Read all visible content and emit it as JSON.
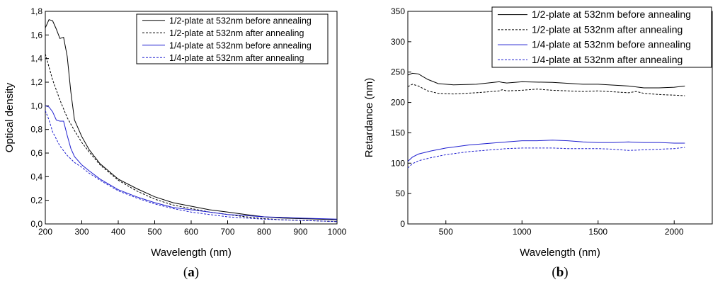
{
  "colors": {
    "black": "#000000",
    "blue": "#1f1fd0"
  },
  "chart_data": [
    {
      "type": "line",
      "panel_label": "a",
      "xlabel": "Wavelength (nm)",
      "ylabel": "Optical density",
      "xlim": [
        200,
        1000
      ],
      "ylim": [
        0,
        1.8
      ],
      "xticks": [
        200,
        300,
        400,
        500,
        600,
        700,
        800,
        900,
        1000
      ],
      "xtick_labels": [
        "200",
        "300",
        "400",
        "500",
        "600",
        "700",
        "800",
        "900",
        "1000"
      ],
      "yticks": [
        0,
        0.2,
        0.4,
        0.6,
        0.8,
        1.0,
        1.2,
        1.4,
        1.6,
        1.8
      ],
      "ytick_labels": [
        "0,0",
        "0,2",
        "0,4",
        "0,6",
        "0,8",
        "1,0",
        "1,2",
        "1,4",
        "1,6",
        "1,8"
      ],
      "legend_position": "top-right",
      "series": [
        {
          "name": "1/2-plate at 532nm before annealing",
          "color": "#000000",
          "dash": "solid",
          "x": [
            200,
            210,
            220,
            230,
            240,
            250,
            260,
            270,
            280,
            300,
            320,
            350,
            400,
            450,
            500,
            550,
            600,
            650,
            700,
            750,
            800,
            850,
            900,
            950,
            1000
          ],
          "y": [
            1.66,
            1.73,
            1.72,
            1.65,
            1.57,
            1.58,
            1.42,
            1.12,
            0.88,
            0.74,
            0.63,
            0.51,
            0.38,
            0.3,
            0.23,
            0.18,
            0.15,
            0.12,
            0.1,
            0.08,
            0.06,
            0.05,
            0.045,
            0.04,
            0.035
          ]
        },
        {
          "name": "1/2-plate at 532nm after annealing",
          "color": "#000000",
          "dash": "dashed",
          "x": [
            200,
            220,
            240,
            260,
            280,
            300,
            320,
            350,
            400,
            450,
            500,
            550,
            600,
            650,
            700,
            750,
            800,
            850,
            900,
            950,
            1000
          ],
          "y": [
            1.44,
            1.22,
            1.05,
            0.9,
            0.79,
            0.69,
            0.61,
            0.5,
            0.37,
            0.28,
            0.21,
            0.16,
            0.13,
            0.1,
            0.08,
            0.06,
            0.045,
            0.035,
            0.03,
            0.025,
            0.02
          ]
        },
        {
          "name": "1/4-plate at 532nm before annealing",
          "color": "#1f1fd0",
          "dash": "solid",
          "x": [
            200,
            210,
            220,
            230,
            240,
            250,
            260,
            270,
            280,
            300,
            320,
            350,
            400,
            450,
            500,
            550,
            600,
            650,
            700,
            750,
            800,
            850,
            900,
            950,
            1000
          ],
          "y": [
            1.0,
            0.99,
            0.95,
            0.88,
            0.87,
            0.87,
            0.75,
            0.64,
            0.57,
            0.5,
            0.45,
            0.38,
            0.29,
            0.23,
            0.18,
            0.14,
            0.12,
            0.1,
            0.08,
            0.07,
            0.06,
            0.055,
            0.05,
            0.045,
            0.04
          ]
        },
        {
          "name": "1/4-plate at 532nm after annealing",
          "color": "#1f1fd0",
          "dash": "dashed",
          "x": [
            200,
            210,
            220,
            240,
            260,
            280,
            300,
            320,
            350,
            400,
            450,
            500,
            550,
            600,
            650,
            700,
            750,
            800,
            850,
            900,
            950,
            1000
          ],
          "y": [
            0.96,
            0.88,
            0.78,
            0.66,
            0.58,
            0.52,
            0.48,
            0.43,
            0.37,
            0.28,
            0.22,
            0.17,
            0.13,
            0.1,
            0.08,
            0.06,
            0.05,
            0.04,
            0.035,
            0.03,
            0.025,
            0.02
          ]
        }
      ]
    },
    {
      "type": "line",
      "panel_label": "b",
      "xlabel": "Wavelength (nm)",
      "ylabel": "Retardance (nm)",
      "xlim": [
        250,
        2250
      ],
      "ylim": [
        0,
        350
      ],
      "xticks": [
        500,
        1000,
        1500,
        2000
      ],
      "xtick_labels": [
        "500",
        "1000",
        "1500",
        "2000"
      ],
      "yticks": [
        0,
        50,
        100,
        150,
        200,
        250,
        300,
        350
      ],
      "ytick_labels": [
        "0",
        "50",
        "100",
        "150",
        "200",
        "250",
        "300",
        "350"
      ],
      "legend_position": "top-right",
      "series": [
        {
          "name": "1/2-plate at 532nm before annealing",
          "color": "#000000",
          "dash": "solid",
          "x": [
            250,
            280,
            320,
            380,
            450,
            550,
            700,
            850,
            870,
            900,
            1000,
            1200,
            1400,
            1500,
            1700,
            1800,
            1900,
            2000,
            2070
          ],
          "y": [
            245,
            248,
            247,
            238,
            231,
            229,
            230,
            234,
            233,
            232,
            234,
            233,
            230,
            230,
            227,
            224,
            224,
            225,
            227
          ]
        },
        {
          "name": "1/2-plate at 532nm after annealing",
          "color": "#000000",
          "dash": "dashed",
          "x": [
            250,
            280,
            320,
            380,
            450,
            550,
            700,
            850,
            870,
            900,
            1000,
            1100,
            1200,
            1400,
            1500,
            1700,
            1750,
            1800,
            1900,
            2000,
            2070
          ],
          "y": [
            226,
            230,
            227,
            219,
            215,
            214,
            216,
            219,
            221,
            219,
            220,
            222,
            220,
            218,
            219,
            216,
            218,
            215,
            213,
            212,
            211
          ]
        },
        {
          "name": "1/4-plate at 532nm before annealing",
          "color": "#1f1fd0",
          "dash": "solid",
          "x": [
            250,
            280,
            320,
            400,
            500,
            650,
            800,
            900,
            1000,
            1100,
            1200,
            1300,
            1400,
            1500,
            1600,
            1700,
            1800,
            1900,
            2000,
            2070
          ],
          "y": [
            103,
            110,
            115,
            120,
            125,
            130,
            133,
            135,
            137,
            137,
            138,
            137,
            135,
            134,
            134,
            135,
            134,
            134,
            133,
            133
          ]
        },
        {
          "name": "1/4-plate at 532nm after annealing",
          "color": "#1f1fd0",
          "dash": "dashed",
          "x": [
            250,
            280,
            320,
            400,
            500,
            650,
            800,
            900,
            1000,
            1100,
            1200,
            1300,
            1400,
            1500,
            1600,
            1700,
            1800,
            1900,
            2000,
            2070
          ],
          "y": [
            92,
            99,
            104,
            109,
            114,
            119,
            122,
            124,
            125,
            125,
            125,
            124,
            124,
            124,
            123,
            121,
            122,
            123,
            124,
            126
          ]
        }
      ]
    }
  ]
}
